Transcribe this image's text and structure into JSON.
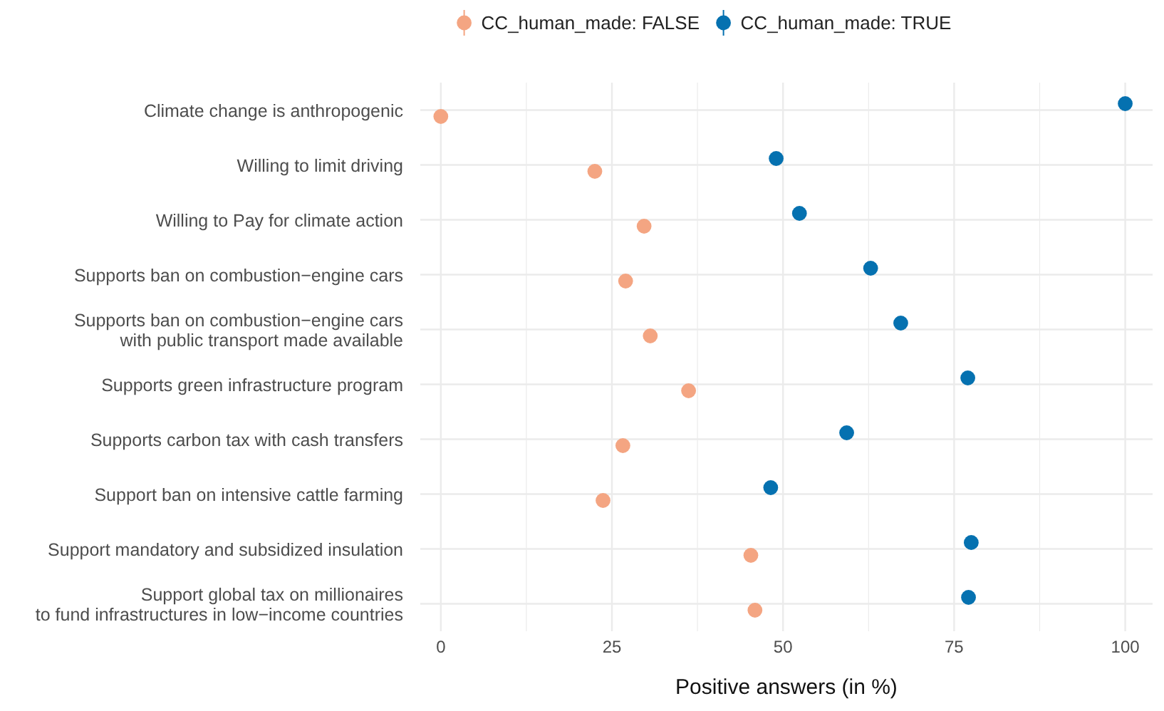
{
  "chart_data": {
    "type": "scatter",
    "orientation": "horizontal",
    "xlabel": "Positive answers (in %)",
    "categories": [
      "Climate change is anthropogenic",
      "Willing to limit driving",
      "Willing to Pay for climate action",
      "Supports ban on combustion−engine cars",
      "Supports ban on combustion−engine cars\nwith public transport made available",
      "Supports green infrastructure program",
      "Supports carbon tax with cash transfers",
      "Support ban on intensive cattle farming",
      "Support mandatory and subsidized insulation",
      "Support global tax on millionaires\nto fund infrastructures in low−income countries"
    ],
    "series": [
      {
        "name": "CC_human_made: FALSE",
        "color": "#f4a582",
        "values": [
          0,
          22.5,
          29.7,
          27,
          30.6,
          36.2,
          26.6,
          23.7,
          45.3,
          45.9
        ]
      },
      {
        "name": "CC_human_made: TRUE",
        "color": "#0571b0",
        "values": [
          100,
          49,
          52.4,
          62.8,
          67.2,
          77,
          59.3,
          48.2,
          77.5,
          77.1
        ]
      }
    ],
    "xlim": [
      -3,
      104
    ],
    "xticks": [
      0,
      {
        "value": 12.5,
        "label": null
      },
      25,
      {
        "value": 37.5,
        "label": null
      },
      50,
      {
        "value": 62.5,
        "label": null
      },
      75,
      {
        "value": 87.5,
        "label": null
      },
      100
    ],
    "grid": true,
    "legend": "top",
    "marker": "circle"
  }
}
